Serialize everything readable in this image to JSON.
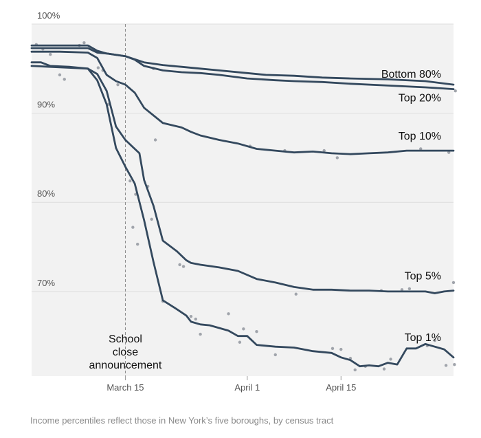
{
  "chart_data": {
    "type": "line",
    "title": "",
    "xlabel": "",
    "ylabel": "",
    "ylim": [
      60.5,
      100
    ],
    "x_range": [
      0,
      45
    ],
    "x_ticks": [
      {
        "x": 10,
        "label": "March 15"
      },
      {
        "x": 23,
        "label": "April 1"
      },
      {
        "x": 33,
        "label": "April 15"
      }
    ],
    "y_ticks": [
      {
        "y": 100,
        "label": "100%"
      },
      {
        "y": 90,
        "label": "90%"
      },
      {
        "y": 80,
        "label": "80%"
      },
      {
        "y": 70,
        "label": "70%"
      }
    ],
    "grid": true,
    "annotation": {
      "x": 10,
      "text_lines": [
        "School",
        "close",
        "announcement"
      ]
    },
    "footnote": "Income percentiles reflect those in New York’s five boroughs, by census tract",
    "colors": {
      "line": "#34495e",
      "dots": "#a0a4ab",
      "grid": "#dddddd",
      "shade": "#f2f2f2",
      "annotation_line": "#888888"
    },
    "series": [
      {
        "name": "Bottom 80%",
        "x": [
          0,
          3,
          6,
          7,
          8,
          10,
          12,
          14,
          16,
          18,
          20,
          23,
          25,
          28,
          31,
          34,
          38,
          42,
          45
        ],
        "values": [
          97.6,
          97.6,
          97.6,
          97.0,
          96.7,
          96.4,
          95.7,
          95.4,
          95.2,
          95.0,
          94.8,
          94.5,
          94.3,
          94.2,
          94.0,
          93.9,
          93.8,
          93.6,
          93.2
        ]
      },
      {
        "name": "Top 20%",
        "x": [
          0,
          3,
          6,
          7,
          8,
          10,
          11,
          12,
          14,
          16,
          18,
          20,
          23,
          26,
          28,
          31,
          34,
          38,
          42,
          45
        ],
        "values": [
          97.3,
          97.3,
          97.3,
          96.8,
          96.7,
          96.4,
          96.0,
          95.3,
          94.8,
          94.6,
          94.5,
          94.3,
          93.9,
          93.7,
          93.6,
          93.5,
          93.3,
          93.1,
          92.9,
          92.7
        ]
      },
      {
        "name": "Top 10%",
        "x": [
          0,
          3,
          6,
          7,
          8,
          9,
          10,
          11,
          12,
          14,
          16,
          17,
          18,
          20,
          22,
          24,
          26,
          28,
          30,
          32,
          34,
          36,
          38,
          40,
          42,
          45
        ],
        "values": [
          96.9,
          96.9,
          96.8,
          96.2,
          94.3,
          93.6,
          93.2,
          92.3,
          90.6,
          88.9,
          88.4,
          87.9,
          87.5,
          87.0,
          86.6,
          86.0,
          85.8,
          85.6,
          85.7,
          85.5,
          85.4,
          85.5,
          85.6,
          85.8,
          85.8,
          85.8
        ]
      },
      {
        "name": "Top 5%",
        "x": [
          0,
          2,
          4,
          6,
          7,
          8,
          9,
          10,
          11,
          11.5,
          12,
          13,
          14,
          15.5,
          16.5,
          17,
          18,
          20,
          22,
          24,
          26,
          28,
          30,
          32,
          34,
          36,
          38,
          40,
          42,
          43,
          44,
          45
        ],
        "values": [
          95.3,
          95.2,
          95.1,
          95.0,
          94.4,
          92.5,
          88.5,
          87.0,
          86.0,
          85.5,
          82.5,
          79.6,
          75.7,
          74.5,
          73.5,
          73.2,
          73.0,
          72.7,
          72.3,
          71.4,
          71.0,
          70.5,
          70.2,
          70.2,
          70.1,
          70.1,
          70.0,
          70.0,
          70.0,
          69.8,
          70.0,
          70.1
        ]
      },
      {
        "name": "Top 1%",
        "x": [
          0,
          1,
          2,
          4,
          6,
          7,
          8,
          9,
          10,
          11,
          12,
          13,
          14,
          15.5,
          16.5,
          17,
          18,
          19,
          20,
          21,
          22,
          23,
          24,
          26,
          28,
          30,
          32,
          33,
          34,
          35,
          36,
          37,
          38,
          39,
          40,
          41,
          42,
          43,
          44,
          45
        ],
        "values": [
          95.7,
          95.7,
          95.3,
          95.2,
          95.0,
          93.7,
          91.0,
          86.1,
          84.0,
          82.1,
          78.0,
          73.3,
          69.0,
          68.0,
          67.3,
          66.6,
          66.3,
          66.2,
          65.9,
          65.6,
          65.0,
          65.0,
          64.0,
          63.8,
          63.7,
          63.3,
          63.1,
          62.6,
          62.3,
          61.6,
          61.7,
          61.6,
          62.0,
          61.8,
          63.6,
          63.6,
          64.1,
          63.8,
          63.5,
          62.6
        ]
      }
    ],
    "scatter": [
      {
        "x": 0.5,
        "y": 97.7
      },
      {
        "x": 1.2,
        "y": 97.2
      },
      {
        "x": 2.0,
        "y": 96.6
      },
      {
        "x": 3.0,
        "y": 94.3
      },
      {
        "x": 3.5,
        "y": 93.8
      },
      {
        "x": 5.1,
        "y": 97.6
      },
      {
        "x": 5.6,
        "y": 97.9
      },
      {
        "x": 6.2,
        "y": 97.3
      },
      {
        "x": 7.1,
        "y": 95.1
      },
      {
        "x": 7.6,
        "y": 94.8
      },
      {
        "x": 8.2,
        "y": 91.0
      },
      {
        "x": 9.2,
        "y": 93.2
      },
      {
        "x": 10.5,
        "y": 82.4
      },
      {
        "x": 10.8,
        "y": 77.2
      },
      {
        "x": 11.1,
        "y": 80.9
      },
      {
        "x": 11.3,
        "y": 75.3
      },
      {
        "x": 12.4,
        "y": 81.8
      },
      {
        "x": 12.8,
        "y": 78.1
      },
      {
        "x": 13.0,
        "y": 95.0
      },
      {
        "x": 13.2,
        "y": 87.0
      },
      {
        "x": 14.0,
        "y": 68.9
      },
      {
        "x": 15.8,
        "y": 73.0
      },
      {
        "x": 16.2,
        "y": 72.8
      },
      {
        "x": 17.0,
        "y": 67.2
      },
      {
        "x": 17.5,
        "y": 66.9
      },
      {
        "x": 18.0,
        "y": 65.2
      },
      {
        "x": 21.0,
        "y": 67.5
      },
      {
        "x": 22.2,
        "y": 64.3
      },
      {
        "x": 22.6,
        "y": 65.8
      },
      {
        "x": 23.3,
        "y": 86.3
      },
      {
        "x": 24.0,
        "y": 65.5
      },
      {
        "x": 26.0,
        "y": 62.9
      },
      {
        "x": 27.0,
        "y": 85.8
      },
      {
        "x": 28.2,
        "y": 69.7
      },
      {
        "x": 31.2,
        "y": 85.8
      },
      {
        "x": 32.1,
        "y": 63.6
      },
      {
        "x": 32.6,
        "y": 85.0
      },
      {
        "x": 33.0,
        "y": 63.5
      },
      {
        "x": 34.0,
        "y": 62.5
      },
      {
        "x": 34.5,
        "y": 61.2
      },
      {
        "x": 35.6,
        "y": 61.6
      },
      {
        "x": 37.3,
        "y": 70.1
      },
      {
        "x": 37.6,
        "y": 61.3
      },
      {
        "x": 38.3,
        "y": 62.4
      },
      {
        "x": 39.5,
        "y": 70.2
      },
      {
        "x": 40.3,
        "y": 70.3
      },
      {
        "x": 41.5,
        "y": 86.0
      },
      {
        "x": 42.2,
        "y": 63.9
      },
      {
        "x": 43.0,
        "y": 64.5
      },
      {
        "x": 44.2,
        "y": 61.7
      },
      {
        "x": 44.5,
        "y": 85.6
      },
      {
        "x": 45.0,
        "y": 71.0
      },
      {
        "x": 45.1,
        "y": 61.8
      },
      {
        "x": 45.2,
        "y": 92.5
      }
    ]
  }
}
